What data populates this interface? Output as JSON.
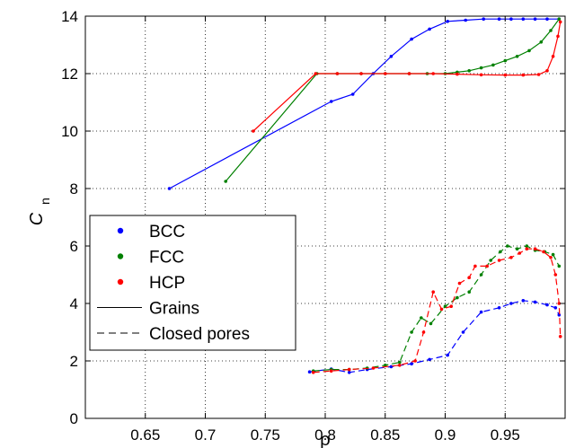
{
  "chart_data": {
    "type": "line",
    "xlabel": "ρ",
    "ylabel_main": "C",
    "ylabel_sub": "n",
    "xlim": [
      0.6,
      1.0
    ],
    "ylim": [
      0,
      14
    ],
    "xticks": [
      0.65,
      0.7,
      0.75,
      0.8,
      0.85,
      0.9,
      0.95
    ],
    "xtick_labels": [
      "0.65",
      "0.7",
      "0.75",
      "0.8",
      "0.85",
      "0.9",
      "0.95"
    ],
    "yticks": [
      0,
      2,
      4,
      6,
      8,
      10,
      12,
      14
    ],
    "ytick_labels": [
      "0",
      "2",
      "4",
      "6",
      "8",
      "10",
      "12",
      "14"
    ],
    "grid": true,
    "legend_position": "bottom-left",
    "legend": [
      {
        "label": "BCC",
        "kind": "marker",
        "color": "#0000ff"
      },
      {
        "label": "FCC",
        "kind": "marker",
        "color": "#008000"
      },
      {
        "label": "HCP",
        "kind": "marker",
        "color": "#ff0000"
      },
      {
        "label": "Grains",
        "kind": "solid",
        "color": "#000000"
      },
      {
        "label": "Closed pores",
        "kind": "dashed",
        "color": "#000000"
      }
    ],
    "series": [
      {
        "structure": "BCC",
        "kind": "grains",
        "color": "#0000ff",
        "style": "solid",
        "points": [
          [
            0.67,
            8.0
          ],
          [
            0.805,
            11.03
          ],
          [
            0.823,
            11.28
          ],
          [
            0.84,
            12.0
          ],
          [
            0.855,
            12.6
          ],
          [
            0.872,
            13.2
          ],
          [
            0.887,
            13.55
          ],
          [
            0.902,
            13.82
          ],
          [
            0.917,
            13.86
          ],
          [
            0.932,
            13.9
          ],
          [
            0.945,
            13.9
          ],
          [
            0.955,
            13.9
          ],
          [
            0.965,
            13.9
          ],
          [
            0.975,
            13.9
          ],
          [
            0.985,
            13.9
          ],
          [
            0.995,
            13.9
          ]
        ]
      },
      {
        "structure": "FCC",
        "kind": "grains",
        "color": "#008000",
        "style": "solid",
        "points": [
          [
            0.717,
            8.25
          ],
          [
            0.793,
            12.0
          ],
          [
            0.81,
            12.0
          ],
          [
            0.83,
            12.0
          ],
          [
            0.85,
            12.0
          ],
          [
            0.87,
            12.0
          ],
          [
            0.885,
            12.0
          ],
          [
            0.9,
            12.0
          ],
          [
            0.91,
            12.05
          ],
          [
            0.92,
            12.1
          ],
          [
            0.93,
            12.2
          ],
          [
            0.94,
            12.3
          ],
          [
            0.95,
            12.45
          ],
          [
            0.96,
            12.6
          ],
          [
            0.97,
            12.8
          ],
          [
            0.98,
            13.1
          ],
          [
            0.988,
            13.5
          ],
          [
            0.995,
            13.9
          ]
        ]
      },
      {
        "structure": "HCP",
        "kind": "grains",
        "color": "#ff0000",
        "style": "solid",
        "points": [
          [
            0.74,
            10.0
          ],
          [
            0.792,
            12.0
          ],
          [
            0.81,
            12.0
          ],
          [
            0.83,
            12.0
          ],
          [
            0.85,
            12.0
          ],
          [
            0.87,
            12.0
          ],
          [
            0.89,
            12.0
          ],
          [
            0.91,
            11.98
          ],
          [
            0.93,
            11.96
          ],
          [
            0.95,
            11.95
          ],
          [
            0.965,
            11.95
          ],
          [
            0.978,
            11.97
          ],
          [
            0.985,
            12.1
          ],
          [
            0.99,
            12.6
          ],
          [
            0.994,
            13.3
          ],
          [
            0.996,
            13.8
          ]
        ]
      },
      {
        "structure": "BCC",
        "kind": "closed_pores",
        "color": "#0000ff",
        "style": "dashed",
        "points": [
          [
            0.787,
            1.62
          ],
          [
            0.805,
            1.72
          ],
          [
            0.82,
            1.6
          ],
          [
            0.835,
            1.7
          ],
          [
            0.855,
            1.8
          ],
          [
            0.872,
            1.9
          ],
          [
            0.887,
            2.05
          ],
          [
            0.902,
            2.2
          ],
          [
            0.915,
            3.0
          ],
          [
            0.93,
            3.7
          ],
          [
            0.945,
            3.85
          ],
          [
            0.955,
            4.0
          ],
          [
            0.965,
            4.1
          ],
          [
            0.975,
            4.05
          ],
          [
            0.985,
            3.95
          ],
          [
            0.992,
            3.85
          ],
          [
            0.995,
            3.6
          ]
        ]
      },
      {
        "structure": "FCC",
        "kind": "closed_pores",
        "color": "#008000",
        "style": "dashed",
        "points": [
          [
            0.79,
            1.65
          ],
          [
            0.805,
            1.7
          ],
          [
            0.82,
            1.7
          ],
          [
            0.835,
            1.75
          ],
          [
            0.85,
            1.85
          ],
          [
            0.862,
            1.95
          ],
          [
            0.872,
            3.0
          ],
          [
            0.88,
            3.5
          ],
          [
            0.888,
            3.3
          ],
          [
            0.9,
            3.9
          ],
          [
            0.91,
            4.2
          ],
          [
            0.92,
            4.4
          ],
          [
            0.93,
            5.0
          ],
          [
            0.938,
            5.5
          ],
          [
            0.946,
            5.8
          ],
          [
            0.952,
            6.0
          ],
          [
            0.96,
            5.9
          ],
          [
            0.968,
            6.0
          ],
          [
            0.975,
            5.85
          ],
          [
            0.983,
            5.8
          ],
          [
            0.99,
            5.7
          ],
          [
            0.995,
            5.3
          ]
        ]
      },
      {
        "structure": "HCP",
        "kind": "closed_pores",
        "color": "#ff0000",
        "style": "dashed",
        "points": [
          [
            0.79,
            1.6
          ],
          [
            0.805,
            1.65
          ],
          [
            0.82,
            1.7
          ],
          [
            0.84,
            1.75
          ],
          [
            0.862,
            1.85
          ],
          [
            0.875,
            2.0
          ],
          [
            0.882,
            3.0
          ],
          [
            0.89,
            4.4
          ],
          [
            0.897,
            3.8
          ],
          [
            0.905,
            3.9
          ],
          [
            0.912,
            4.7
          ],
          [
            0.92,
            4.9
          ],
          [
            0.925,
            5.3
          ],
          [
            0.935,
            5.3
          ],
          [
            0.945,
            5.5
          ],
          [
            0.955,
            5.6
          ],
          [
            0.962,
            5.75
          ],
          [
            0.968,
            5.9
          ],
          [
            0.975,
            5.9
          ],
          [
            0.982,
            5.8
          ],
          [
            0.988,
            5.6
          ],
          [
            0.992,
            5.0
          ],
          [
            0.995,
            4.0
          ],
          [
            0.996,
            2.85
          ]
        ]
      }
    ]
  }
}
